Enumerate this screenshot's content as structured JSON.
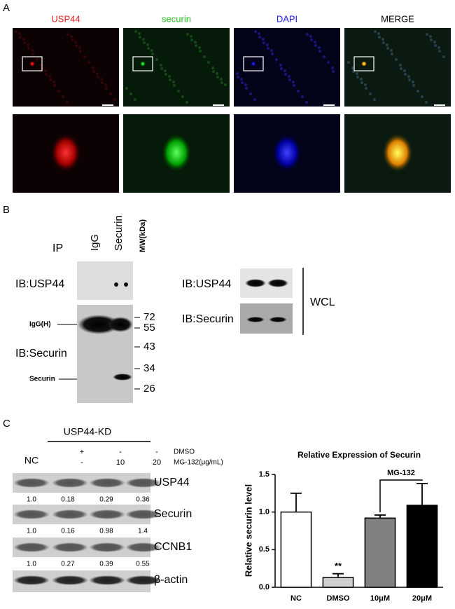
{
  "panel_a": {
    "label": "A",
    "columns": [
      "USP44",
      "securin",
      "DAPI",
      "MERGE"
    ]
  },
  "panel_b": {
    "label": "B",
    "ip_label": "IP",
    "lanes": [
      "IgG",
      "Securin"
    ],
    "mw_header": "MW(kDa)",
    "left_blots": [
      "IB:USP44",
      "IB:Securin"
    ],
    "markers": [
      "72",
      "55",
      "43",
      "34",
      "26"
    ],
    "band_labels": [
      "IgG(H)",
      "Securin"
    ],
    "right_blots": [
      "IB:USP44",
      "IB:Securin"
    ],
    "wcl": "WCL"
  },
  "panel_c": {
    "label": "C",
    "group": "USP44-KD",
    "nc": "NC",
    "dmso_label": "DMSO",
    "dmso": [
      "+",
      "-",
      "-"
    ],
    "mg_label": "MG-132(μg/mL)",
    "mg": [
      "-",
      "10",
      "20"
    ],
    "blots": [
      {
        "name": "USP44",
        "ratios": [
          "1.0",
          "0.18",
          "0.29",
          "0.36"
        ]
      },
      {
        "name": "Securin",
        "ratios": [
          "1.0",
          "0.16",
          "0.98",
          "1.4"
        ]
      },
      {
        "name": "CCNB1",
        "ratios": [
          "1.0",
          "0.27",
          "0.39",
          "0.55"
        ]
      },
      {
        "name": "β-actin"
      }
    ]
  },
  "chart_data": {
    "type": "bar",
    "title": "Relative Expression of Securin",
    "y_label": "Relative securin level",
    "categories": [
      "NC",
      "DMSO",
      "10μM",
      "20μM"
    ],
    "values": [
      1.0,
      0.13,
      0.92,
      1.09
    ],
    "errors": [
      0.25,
      0.05,
      0.04,
      0.29
    ],
    "colors": [
      "#ffffff",
      "#d0d0d0",
      "#808080",
      "#000000"
    ],
    "ylim": [
      0,
      1.5
    ],
    "yticks": [
      {
        "value": 0,
        "label": "0.0"
      },
      {
        "value": 0.5,
        "label": "0.5"
      },
      {
        "value": 1,
        "label": "1.0"
      },
      {
        "value": 1.5,
        "label": "1.5"
      }
    ],
    "significance": "**",
    "bracket_label": "MG-132"
  }
}
